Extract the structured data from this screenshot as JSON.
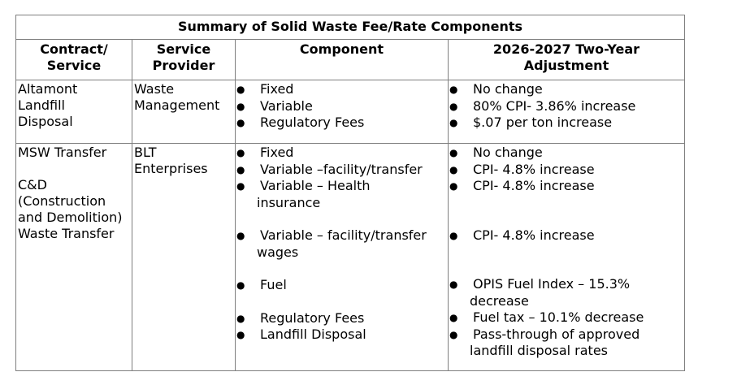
{
  "table": {
    "title": "Summary of Solid Waste Fee/Rate Components",
    "headers": {
      "contract": [
        "Contract/",
        "Service"
      ],
      "provider": [
        "Service",
        "Provider"
      ],
      "component": [
        "Component"
      ],
      "adjustment": [
        "2026-2027 Two-Year",
        "Adjustment"
      ]
    },
    "rows": [
      {
        "contract": [
          "Altamont",
          "Landfill",
          "Disposal"
        ],
        "provider": [
          "Waste",
          "Management"
        ],
        "components": [
          "Fixed",
          "Variable",
          "Regulatory Fees"
        ],
        "adjustments": [
          "No change",
          "80% CPI- 3.86% increase",
          "$.07 per ton increase"
        ]
      },
      {
        "contract_a": [
          "MSW Transfer"
        ],
        "contract_b": [
          "C&D",
          "(Construction",
          "and Demolition)",
          "Waste Transfer"
        ],
        "provider": [
          "BLT",
          "Enterprises"
        ],
        "components": {
          "c1": "Fixed",
          "c2": "Variable –facility/transfer",
          "c3_a": "Variable – Health",
          "c3_b": "insurance",
          "c4_a": "Variable – facility/transfer",
          "c4_b": "wages",
          "c5": "Fuel",
          "c6": "Regulatory Fees",
          "c7": "Landfill Disposal"
        },
        "adjustments": {
          "a1": "No change",
          "a2": "CPI- 4.8% increase",
          "a3": "CPI- 4.8% increase",
          "a4": "CPI- 4.8% increase",
          "a5_a": "OPIS Fuel Index – 15.3%",
          "a5_b": "decrease",
          "a6": "Fuel tax – 10.1% decrease",
          "a7_a": "Pass-through of approved",
          "a7_b": "landfill disposal rates"
        }
      }
    ]
  },
  "icons": {
    "bullet": "●"
  }
}
